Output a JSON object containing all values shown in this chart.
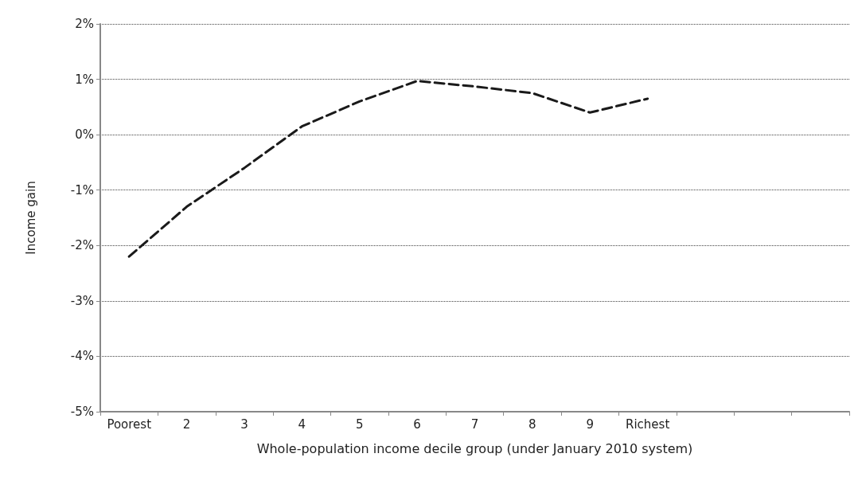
{
  "chart_data": {
    "type": "line",
    "xlabel": "Whole-population income decile group (under January 2010 system)",
    "ylabel": "Income gain",
    "categories": [
      "Poorest",
      "2",
      "3",
      "4",
      "5",
      "6",
      "7",
      "8",
      "9",
      "Richest",
      null,
      null,
      null
    ],
    "series": [
      {
        "color": "#1a1a1a",
        "values": [
          -2.2,
          -1.3,
          -0.6,
          0.15,
          0.6,
          0.97,
          0.87,
          0.75,
          0.4,
          0.65,
          null,
          null,
          null
        ]
      }
    ],
    "ylim": [
      -5,
      2
    ],
    "yticks": [
      {
        "value": -5,
        "label": "-5%"
      },
      {
        "value": -4,
        "label": "-4%"
      },
      {
        "value": -3,
        "label": "-3%"
      },
      {
        "value": -2,
        "label": "-2%"
      },
      {
        "value": -1,
        "label": "-1%"
      },
      {
        "value": 0,
        "label": "0%"
      },
      {
        "value": 1,
        "label": "1%"
      },
      {
        "value": 2,
        "label": "2%"
      }
    ],
    "grid": "y",
    "marker": "none",
    "line_style": "dashed"
  }
}
